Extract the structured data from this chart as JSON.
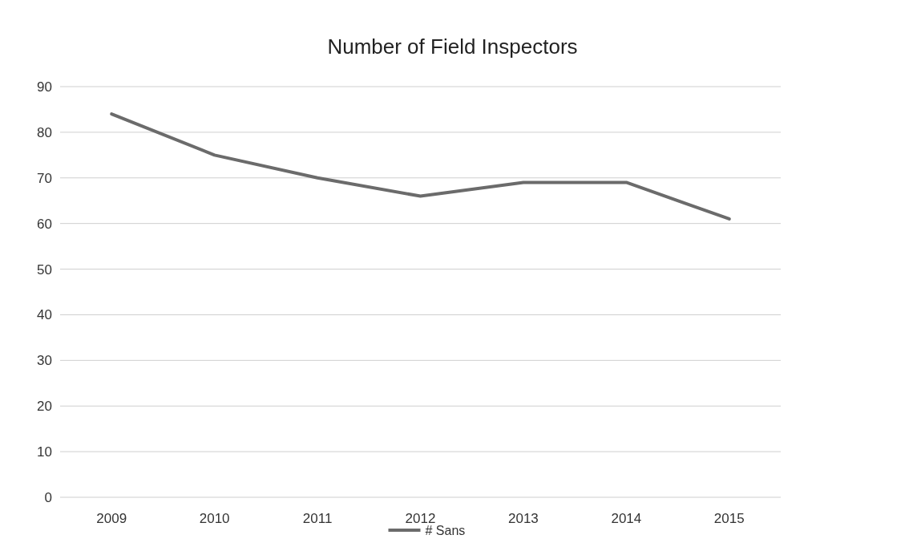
{
  "chart_data": {
    "type": "line",
    "title": "Number of Field Inspectors",
    "categories": [
      "2009",
      "2010",
      "2011",
      "2012",
      "2013",
      "2014",
      "2015"
    ],
    "series": [
      {
        "name": "# Sans",
        "color": "#6b6b6b",
        "values": [
          84,
          75,
          70,
          66,
          69,
          69,
          61
        ]
      }
    ],
    "ylim": [
      0,
      90
    ],
    "yticks": [
      0,
      10,
      20,
      30,
      40,
      50,
      60,
      70,
      80,
      90
    ],
    "grid": "y",
    "legend": "bottom",
    "marker": "none"
  }
}
